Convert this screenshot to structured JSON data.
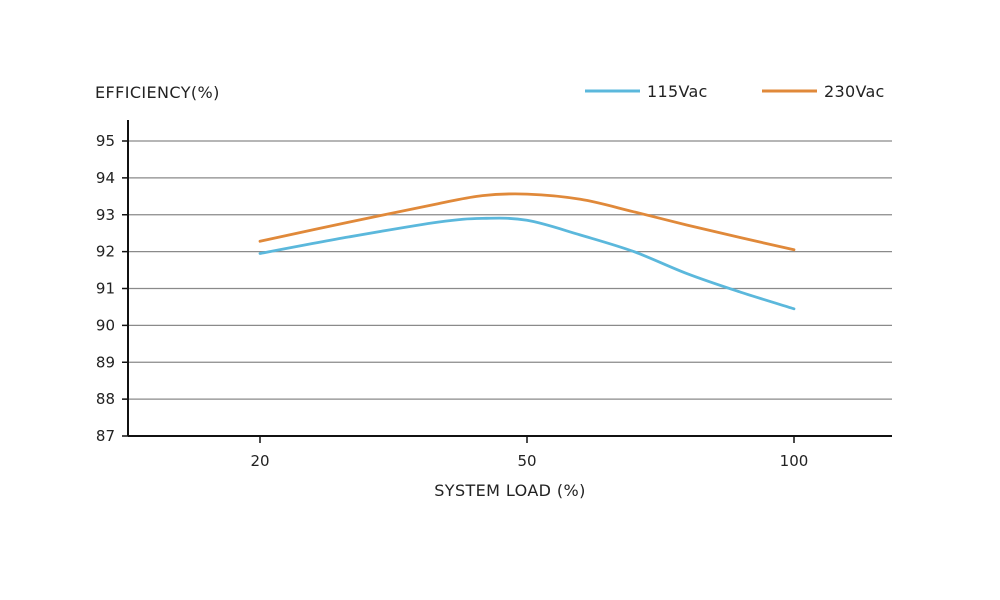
{
  "chart_data": {
    "type": "line",
    "title": "",
    "ylabel": "EFFICIENCY(%)",
    "xlabel": "SYSTEM LOAD (%)",
    "ylim": [
      87,
      95
    ],
    "y_ticks": [
      "87",
      "88",
      "89",
      "90",
      "91",
      "92",
      "93",
      "94",
      "95"
    ],
    "x_tick_labels": [
      "20",
      "50",
      "100"
    ],
    "grid": true,
    "legend_position": "top-right",
    "series": [
      {
        "name": "115Vac",
        "color": "#5bb8dc",
        "points": [
          {
            "x": 20,
            "y": 91.95
          },
          {
            "x": 30,
            "y": 92.4
          },
          {
            "x": 40,
            "y": 92.8
          },
          {
            "x": 45,
            "y": 92.9
          },
          {
            "x": 50,
            "y": 92.85
          },
          {
            "x": 60,
            "y": 92.45
          },
          {
            "x": 70,
            "y": 92.0
          },
          {
            "x": 80,
            "y": 91.4
          },
          {
            "x": 90,
            "y": 90.9
          },
          {
            "x": 100,
            "y": 90.45
          }
        ]
      },
      {
        "name": "230Vac",
        "color": "#e0893a",
        "points": [
          {
            "x": 20,
            "y": 92.28
          },
          {
            "x": 30,
            "y": 92.8
          },
          {
            "x": 40,
            "y": 93.3
          },
          {
            "x": 45,
            "y": 93.52
          },
          {
            "x": 50,
            "y": 93.56
          },
          {
            "x": 60,
            "y": 93.42
          },
          {
            "x": 70,
            "y": 93.08
          },
          {
            "x": 80,
            "y": 92.72
          },
          {
            "x": 90,
            "y": 92.38
          },
          {
            "x": 100,
            "y": 92.05
          }
        ]
      }
    ]
  }
}
